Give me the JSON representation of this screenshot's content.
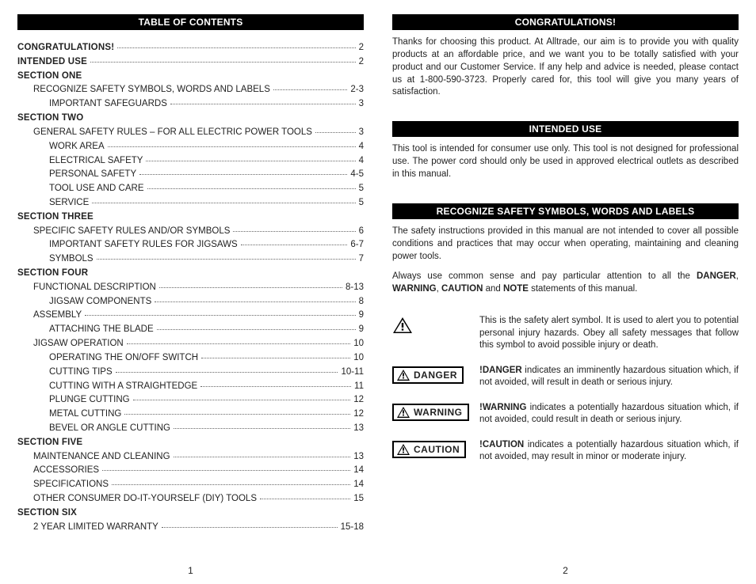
{
  "left": {
    "heading": "TABLE OF CONTENTS",
    "toc": [
      {
        "label": "CONGRATULATIONS!",
        "page": "2",
        "bold": true,
        "indent": 0
      },
      {
        "label": "INTENDED USE",
        "page": "2",
        "bold": true,
        "indent": 0
      },
      {
        "label": "SECTION ONE",
        "page": "",
        "bold": true,
        "indent": 0,
        "section": true
      },
      {
        "label": "RECOGNIZE SAFETY SYMBOLS, WORDS AND LABELS",
        "page": "2-3",
        "bold": false,
        "indent": 1
      },
      {
        "label": "IMPORTANT SAFEGUARDS",
        "page": "3",
        "bold": false,
        "indent": 2
      },
      {
        "label": "SECTION TWO",
        "page": "",
        "bold": true,
        "indent": 0,
        "section": true
      },
      {
        "label": "GENERAL SAFETY RULES – FOR ALL ELECTRIC POWER TOOLS",
        "page": "3",
        "bold": false,
        "indent": 1
      },
      {
        "label": "WORK AREA",
        "page": "4",
        "bold": false,
        "indent": 2
      },
      {
        "label": "ELECTRICAL SAFETY",
        "page": "4",
        "bold": false,
        "indent": 2
      },
      {
        "label": "PERSONAL SAFETY",
        "page": "4-5",
        "bold": false,
        "indent": 2
      },
      {
        "label": "TOOL USE AND CARE",
        "page": "5",
        "bold": false,
        "indent": 2
      },
      {
        "label": "SERVICE",
        "page": "5",
        "bold": false,
        "indent": 2
      },
      {
        "label": "SECTION THREE",
        "page": "",
        "bold": true,
        "indent": 0,
        "section": true
      },
      {
        "label": "SPECIFIC SAFETY RULES AND/OR SYMBOLS",
        "page": "6",
        "bold": false,
        "indent": 1
      },
      {
        "label": "IMPORTANT SAFETY RULES FOR JIGSAWS",
        "page": "6-7",
        "bold": false,
        "indent": 2
      },
      {
        "label": "SYMBOLS",
        "page": "7",
        "bold": false,
        "indent": 2
      },
      {
        "label": "SECTION FOUR",
        "page": "",
        "bold": true,
        "indent": 0,
        "section": true
      },
      {
        "label": "FUNCTIONAL DESCRIPTION",
        "page": "8-13",
        "bold": false,
        "indent": 1
      },
      {
        "label": "JIGSAW COMPONENTS",
        "page": "8",
        "bold": false,
        "indent": 2
      },
      {
        "label": "ASSEMBLY",
        "page": "9",
        "bold": false,
        "indent": 1
      },
      {
        "label": "ATTACHING THE BLADE",
        "page": "9",
        "bold": false,
        "indent": 2
      },
      {
        "label": "JIGSAW OPERATION",
        "page": "10",
        "bold": false,
        "indent": 1
      },
      {
        "label": "OPERATING THE ON/OFF SWITCH",
        "page": "10",
        "bold": false,
        "indent": 2
      },
      {
        "label": "CUTTING TIPS",
        "page": "10-11",
        "bold": false,
        "indent": 2
      },
      {
        "label": "CUTTING WITH A STRAIGHTEDGE",
        "page": "11",
        "bold": false,
        "indent": 2
      },
      {
        "label": "PLUNGE CUTTING",
        "page": "12",
        "bold": false,
        "indent": 2
      },
      {
        "label": "METAL CUTTING",
        "page": "12",
        "bold": false,
        "indent": 2
      },
      {
        "label": "BEVEL OR ANGLE CUTTING",
        "page": "13",
        "bold": false,
        "indent": 2
      },
      {
        "label": "SECTION FIVE",
        "page": "",
        "bold": true,
        "indent": 0,
        "section": true
      },
      {
        "label": "MAINTENANCE AND CLEANING",
        "page": "13",
        "bold": false,
        "indent": 1
      },
      {
        "label": "ACCESSORIES",
        "page": "14",
        "bold": false,
        "indent": 1
      },
      {
        "label": "SPECIFICATIONS",
        "page": "14",
        "bold": false,
        "indent": 1
      },
      {
        "label": "OTHER CONSUMER DO-IT-YOURSELF (DIY) TOOLS",
        "page": "15",
        "bold": false,
        "indent": 1
      },
      {
        "label": "SECTION SIX",
        "page": "",
        "bold": true,
        "indent": 0,
        "section": true
      },
      {
        "label": "2 YEAR LIMITED WARRANTY",
        "page": "15-18",
        "bold": false,
        "indent": 1
      }
    ],
    "page_num": "1"
  },
  "right": {
    "headings": {
      "congrats": "CONGRATULATIONS!",
      "intended": "INTENDED USE",
      "recognize": "RECOGNIZE SAFETY SYMBOLS, WORDS AND LABELS"
    },
    "congrats_body": "Thanks for choosing this product. At Alltrade, our aim is to provide you with quality products at an affordable price, and we want you to be totally satisfied with your product and our Customer Service. If any help and advice is needed, please contact us at 1-800-590-3723. Properly cared for, this tool will give you many years of satisfaction.",
    "intended_body": "This tool is intended for consumer use only. This tool is not designed for professional use. The power cord should only be used in approved electrical outlets as described in this manual.",
    "recognize_p1": "The safety instructions provided in this manual are not intended to cover all possible conditions and practices that may occur when operating, maintaining and cleaning power tools.",
    "recognize_p2_pre": "Always use common sense and pay particular attention to all the ",
    "recognize_p2_d": "DANGER",
    "recognize_p2_sep1": ", ",
    "recognize_p2_w": "WARNING",
    "recognize_p2_sep2": ", ",
    "recognize_p2_c": "CAUTION",
    "recognize_p2_and": " and ",
    "recognize_p2_n": "NOTE",
    "recognize_p2_post": " statements of this manual.",
    "alert_text": "This is the safety alert symbol. It is used to alert you to potential personal injury hazards. Obey all safety messages that follow this symbol to avoid possible injury or death.",
    "danger_label": "DANGER",
    "danger_bold": "!DANGER",
    "danger_text": " indicates an imminently hazardous situation which, if not avoided, will result in death or serious injury.",
    "warning_label": "WARNING",
    "warning_bold": "!WARNING",
    "warning_text": " indicates a potentially hazardous situation which, if not avoided, could result in death or serious injury.",
    "caution_label": "CAUTION",
    "caution_bold": "!CAUTION",
    "caution_text": " indicates a potentially hazardous situation which, if not avoided, may result in minor or moderate injury.",
    "page_num": "2"
  },
  "style": {
    "bar_bg": "#000000",
    "bar_fg": "#ffffff",
    "body_bg": "#ffffff",
    "text_color": "#222222"
  }
}
